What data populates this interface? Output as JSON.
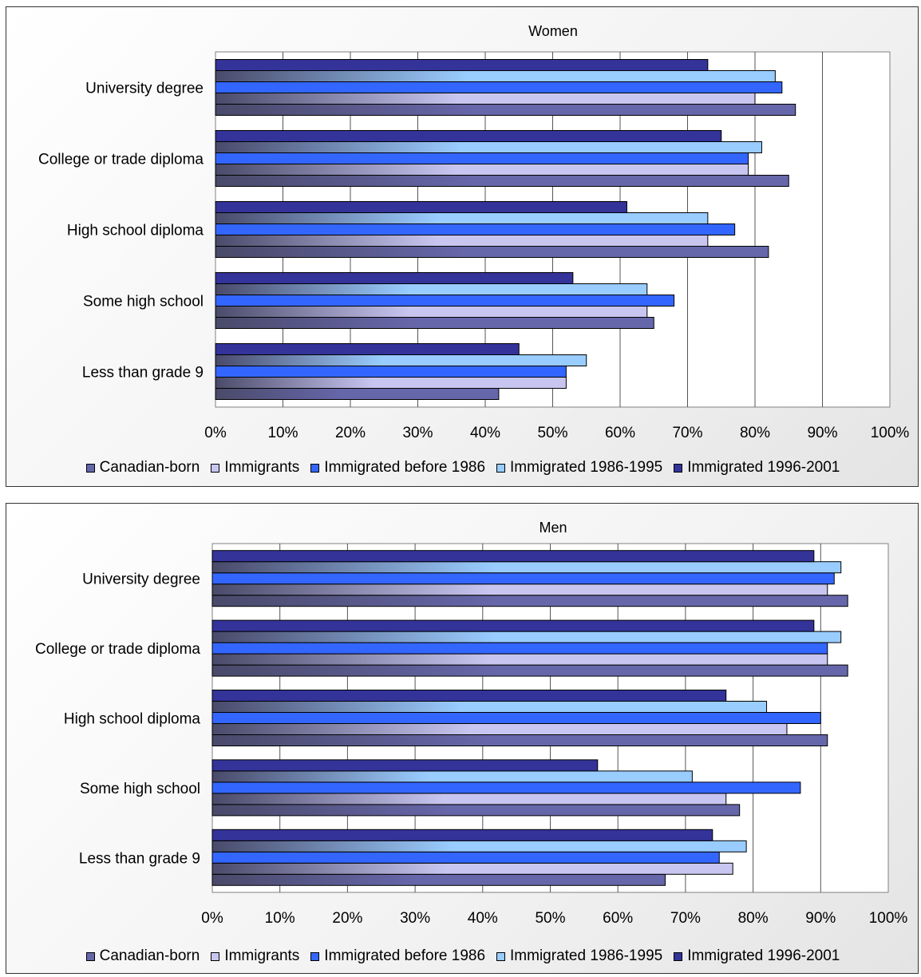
{
  "chart_data": [
    {
      "type": "bar",
      "orientation": "horizontal",
      "title": "Women",
      "categories": [
        "University degree",
        "College or trade diploma",
        "High school diploma",
        "Some high school",
        "Less than grade 9"
      ],
      "series": [
        {
          "name": "Canadian-born",
          "values": [
            86,
            85,
            82,
            65,
            42
          ]
        },
        {
          "name": "Immigrants",
          "values": [
            80,
            79,
            73,
            64,
            52
          ]
        },
        {
          "name": "Immigrated before 1986",
          "values": [
            84,
            79,
            77,
            68,
            52
          ]
        },
        {
          "name": "Immigrated 1986-1995",
          "values": [
            83,
            81,
            73,
            64,
            55
          ]
        },
        {
          "name": "Immigrated 1996-2001",
          "values": [
            73,
            75,
            61,
            53,
            45
          ]
        }
      ],
      "xlim": [
        0,
        100
      ],
      "x_ticks": [
        "0%",
        "10%",
        "20%",
        "30%",
        "40%",
        "50%",
        "60%",
        "70%",
        "80%",
        "90%",
        "100%"
      ],
      "grid": true,
      "legend": "bottom"
    },
    {
      "type": "bar",
      "orientation": "horizontal",
      "title": "Men",
      "categories": [
        "University degree",
        "College or trade diploma",
        "High school diploma",
        "Some high school",
        "Less than grade 9"
      ],
      "series": [
        {
          "name": "Canadian-born",
          "values": [
            94,
            94,
            91,
            78,
            67
          ]
        },
        {
          "name": "Immigrants",
          "values": [
            91,
            91,
            85,
            76,
            77
          ]
        },
        {
          "name": "Immigrated before 1986",
          "values": [
            92,
            91,
            90,
            87,
            75
          ]
        },
        {
          "name": "Immigrated 1986-1995",
          "values": [
            93,
            93,
            82,
            71,
            79
          ]
        },
        {
          "name": "Immigrated 1996-2001",
          "values": [
            89,
            89,
            76,
            57,
            74
          ]
        }
      ],
      "xlim": [
        0,
        100
      ],
      "x_ticks": [
        "0%",
        "10%",
        "20%",
        "30%",
        "40%",
        "50%",
        "60%",
        "70%",
        "80%",
        "90%",
        "100%"
      ],
      "grid": true,
      "legend": "bottom"
    }
  ],
  "legend": [
    {
      "label": "Canadian-born",
      "color": "#6666aa"
    },
    {
      "label": "Immigrants",
      "color": "#c8c6f0"
    },
    {
      "label": "Immigrated before 1986",
      "color": "#3366ff"
    },
    {
      "label": "Immigrated 1986-1995",
      "color": "#99ccff"
    },
    {
      "label": "Immigrated 1996-2001",
      "color": "#333399"
    }
  ]
}
